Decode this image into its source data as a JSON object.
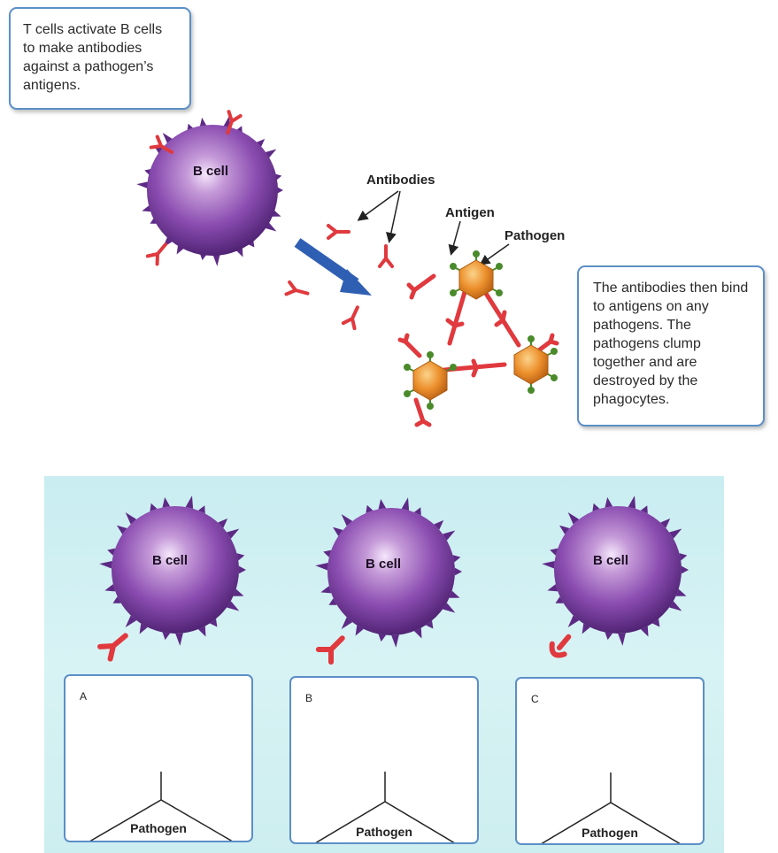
{
  "top_callout": "T cells activate B cells to make antibodies against a pathogen’s antigens.",
  "right_callout": "The antibodies then bind to antigens on any pathogens. The pathogens clump together and are destroyed by the phagocytes.",
  "labels": {
    "b_cell": "B cell",
    "antibodies": "Antibodies",
    "antigen": "Antigen",
    "pathogen": "Pathogen"
  },
  "answer_boxes": [
    {
      "letter": "A",
      "label": "Pathogen"
    },
    {
      "letter": "B",
      "label": "Pathogen"
    },
    {
      "letter": "C",
      "label": "Pathogen"
    }
  ],
  "colors": {
    "cell_purple": "#7b3fa0",
    "antibody_red": "#e0393e",
    "arrow_blue": "#2f5fb3",
    "pathogen_orange": "#e88a2a",
    "box_border": "#5b8fc7",
    "panel_bg": "#cdeef0"
  }
}
